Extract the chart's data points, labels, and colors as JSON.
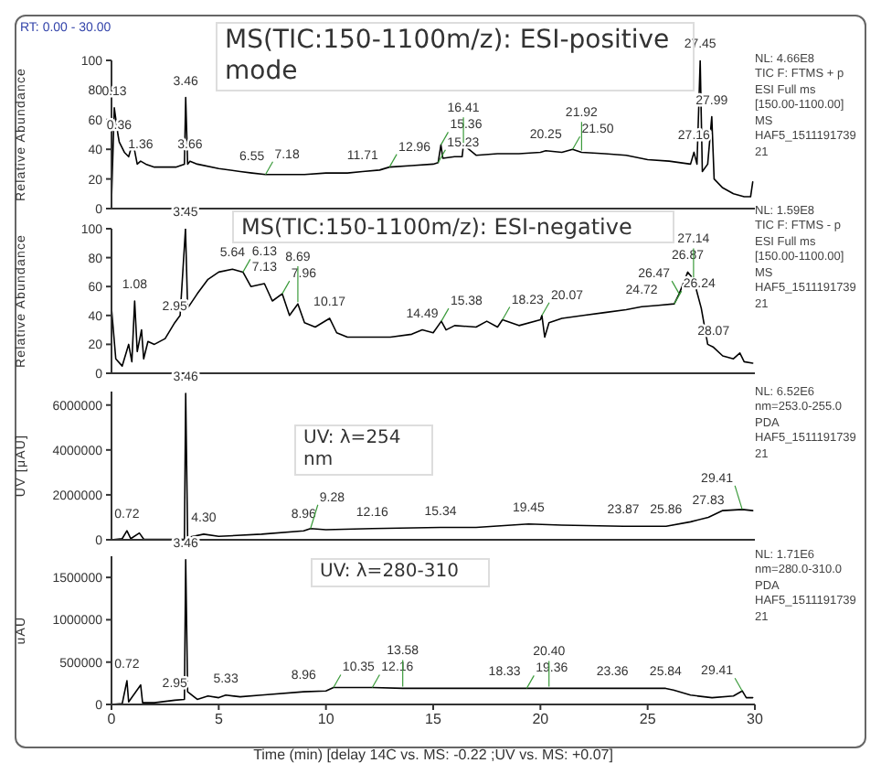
{
  "chart_data": [
    {
      "type": "line",
      "title": "MS(TIC:150-1100m/z): ESI-positive mode",
      "subtitle": "RT: 0.00 - 30.00",
      "ylabel": "Relative Abundance",
      "color": "#000000",
      "xlim": [
        0,
        30
      ],
      "xticks": [
        0,
        5,
        10,
        15,
        20,
        25,
        30
      ],
      "ylim": [
        0,
        100
      ],
      "yticks": [
        0,
        20,
        40,
        60,
        80,
        100
      ],
      "tick_labels": "y",
      "x": [
        0,
        0.13,
        0.3,
        0.36,
        0.6,
        0.8,
        1.0,
        1.2,
        1.36,
        1.6,
        2,
        2.5,
        3,
        3.4,
        3.46,
        3.55,
        3.66,
        4,
        5,
        6,
        6.55,
        7.18,
        8,
        9,
        10,
        11,
        11.71,
        12.5,
        12.96,
        14,
        15,
        15.23,
        15.36,
        15.45,
        16,
        16.35,
        16.41,
        17,
        18,
        19,
        20,
        20.25,
        21,
        21.5,
        21.92,
        23,
        24,
        25,
        26,
        27,
        27.16,
        27.3,
        27.45,
        27.55,
        27.8,
        27.99,
        28.1,
        28.5,
        29,
        29.5,
        29.8,
        29.9
      ],
      "values": [
        5,
        68,
        50,
        45,
        38,
        35,
        45,
        30,
        32,
        30,
        28,
        28,
        28,
        30,
        75,
        30,
        32,
        30,
        27,
        25,
        24,
        23,
        23,
        23,
        24,
        24,
        25,
        26,
        28,
        29,
        30,
        31,
        43,
        34,
        35,
        35,
        43,
        36,
        37,
        37,
        38,
        39,
        38,
        40,
        38,
        37,
        36,
        33,
        32,
        30,
        38,
        30,
        100,
        25,
        30,
        62,
        20,
        14,
        10,
        8,
        8,
        18
      ],
      "annotations": [
        {
          "text": "0.13",
          "x": 0.13,
          "y": 68
        },
        {
          "text": "0.36",
          "x": 0.36,
          "y": 45
        },
        {
          "text": "1.36",
          "x": 1.36,
          "y": 32
        },
        {
          "text": "3.46",
          "x": 3.46,
          "y": 75
        },
        {
          "text": "3.66",
          "x": 3.66,
          "y": 32
        },
        {
          "text": "6.55",
          "x": 6.55,
          "y": 24
        },
        {
          "text": "7.18",
          "x": 7.18,
          "y": 23
        },
        {
          "text": "11.71",
          "x": 11.71,
          "y": 25
        },
        {
          "text": "12.96",
          "x": 12.96,
          "y": 28
        },
        {
          "text": "15.23",
          "x": 15.23,
          "y": 31
        },
        {
          "text": "15.36",
          "x": 15.36,
          "y": 43
        },
        {
          "text": "16.41",
          "x": 16.41,
          "y": 43
        },
        {
          "text": "20.25",
          "x": 20.25,
          "y": 39
        },
        {
          "text": "21.50",
          "x": 21.5,
          "y": 40
        },
        {
          "text": "21.92",
          "x": 21.92,
          "y": 38
        },
        {
          "text": "27.16",
          "x": 27.16,
          "y": 38
        },
        {
          "text": "27.45",
          "x": 27.45,
          "y": 100
        },
        {
          "text": "27.99",
          "x": 27.99,
          "y": 62
        },
        "NL: 4.66E8",
        "TIC F: FTMS + p",
        "ESI Full ms",
        "[150.00-1100.00]",
        "MS",
        "HAF5_151119173921"
      ]
    },
    {
      "type": "line",
      "title": "MS(TIC:150-1100m/z): ESI-negative",
      "ylabel": "Relative Abundance",
      "color": "#000000",
      "xlim": [
        0,
        30
      ],
      "xticks": [
        0,
        5,
        10,
        15,
        20,
        25,
        30
      ],
      "ylim": [
        0,
        100
      ],
      "yticks": [
        0,
        20,
        40,
        60,
        80,
        100
      ],
      "tick_labels": "y",
      "x": [
        0,
        0.2,
        0.5,
        0.8,
        0.95,
        1.08,
        1.2,
        1.4,
        1.5,
        1.7,
        2,
        2.5,
        2.95,
        3.2,
        3.45,
        3.55,
        4,
        4.5,
        5,
        5.64,
        6.13,
        6.5,
        7.13,
        7.5,
        7.96,
        8.3,
        8.69,
        9,
        9.5,
        10.17,
        10.5,
        11,
        12,
        13,
        14,
        14.49,
        15,
        15.38,
        15.6,
        16,
        17,
        17.5,
        18,
        18.23,
        19,
        20,
        20.07,
        20.2,
        20.4,
        21,
        22,
        23,
        24,
        24.72,
        25.5,
        26.24,
        26.47,
        26.87,
        27.14,
        27.5,
        27.8,
        28.07,
        28.5,
        29,
        29.3,
        29.5,
        29.9
      ],
      "values": [
        45,
        10,
        5,
        20,
        8,
        50,
        15,
        30,
        10,
        22,
        20,
        24,
        35,
        40,
        100,
        45,
        55,
        65,
        70,
        72,
        70,
        60,
        62,
        50,
        55,
        40,
        48,
        35,
        32,
        38,
        28,
        25,
        25,
        25,
        27,
        30,
        28,
        36,
        30,
        33,
        32,
        36,
        32,
        37,
        33,
        37,
        40,
        25,
        35,
        38,
        40,
        42,
        44,
        46,
        47,
        48,
        55,
        70,
        65,
        45,
        20,
        18,
        12,
        10,
        14,
        8,
        7
      ],
      "annotations": [
        {
          "text": "1.08",
          "x": 1.08,
          "y": 50
        },
        {
          "text": "2.95",
          "x": 2.95,
          "y": 35
        },
        {
          "text": "3.45",
          "x": 3.45,
          "y": 100
        },
        {
          "text": "5.64",
          "x": 5.64,
          "y": 72
        },
        {
          "text": "6.13",
          "x": 6.13,
          "y": 70
        },
        {
          "text": "7.13",
          "x": 7.13,
          "y": 62
        },
        {
          "text": "7.96",
          "x": 7.96,
          "y": 55
        },
        {
          "text": "8.69",
          "x": 8.69,
          "y": 48
        },
        {
          "text": "10.17",
          "x": 10.17,
          "y": 38
        },
        {
          "text": "14.49",
          "x": 14.49,
          "y": 30
        },
        {
          "text": "15.38",
          "x": 15.38,
          "y": 36
        },
        {
          "text": "18.23",
          "x": 18.23,
          "y": 37
        },
        {
          "text": "20.07",
          "x": 20.07,
          "y": 40
        },
        {
          "text": "24.72",
          "x": 24.72,
          "y": 46
        },
        {
          "text": "26.24",
          "x": 26.24,
          "y": 48
        },
        {
          "text": "26.47",
          "x": 26.47,
          "y": 55
        },
        {
          "text": "26.87",
          "x": 26.87,
          "y": 70
        },
        {
          "text": "27.14",
          "x": 27.14,
          "y": 65
        },
        {
          "text": "28.07",
          "x": 28.07,
          "y": 18
        },
        "NL: 1.59E8",
        "TIC F: FTMS - p",
        "ESI Full ms",
        "[150.00-1100.00]",
        "MS",
        "HAF5_151119173921"
      ]
    },
    {
      "type": "line",
      "title": "UV: λ=254 nm",
      "ylabel": "UV [μAU]",
      "color": "#000000",
      "xlim": [
        0,
        30
      ],
      "xticks": [
        0,
        5,
        10,
        15,
        20,
        25,
        30
      ],
      "ylim": [
        0,
        6600000
      ],
      "yticks": [
        0,
        2000000,
        4000000,
        6000000
      ],
      "tick_labels": "y",
      "x": [
        0,
        0.5,
        0.72,
        0.9,
        1.3,
        1.5,
        3,
        3.4,
        3.46,
        3.55,
        4.3,
        5,
        7,
        8.96,
        9.28,
        10,
        12.16,
        15.34,
        17,
        19.45,
        21,
        23.87,
        25.86,
        27,
        27.83,
        28.5,
        29.41,
        29.9
      ],
      "values": [
        0,
        50000,
        400000,
        50000,
        300000,
        30000,
        20000,
        30000,
        6520000,
        100000,
        250000,
        150000,
        250000,
        400000,
        500000,
        450000,
        500000,
        550000,
        550000,
        700000,
        650000,
        600000,
        600000,
        800000,
        1000000,
        1300000,
        1350000,
        1300000
      ],
      "annotations": [
        {
          "text": "0.72",
          "x": 0.72,
          "y": 400000
        },
        {
          "text": "3.46",
          "x": 3.46,
          "y": 6520000
        },
        {
          "text": "4.30",
          "x": 4.3,
          "y": 250000
        },
        {
          "text": "8.96",
          "x": 8.96,
          "y": 400000
        },
        {
          "text": "9.28",
          "x": 9.28,
          "y": 500000
        },
        {
          "text": "12.16",
          "x": 12.16,
          "y": 500000
        },
        {
          "text": "15.34",
          "x": 15.34,
          "y": 550000
        },
        {
          "text": "19.45",
          "x": 19.45,
          "y": 700000
        },
        {
          "text": "23.87",
          "x": 23.87,
          "y": 600000
        },
        {
          "text": "25.86",
          "x": 25.86,
          "y": 600000
        },
        {
          "text": "27.83",
          "x": 27.83,
          "y": 1000000
        },
        {
          "text": "29.41",
          "x": 29.41,
          "y": 1350000
        },
        "NL: 6.52E6",
        "nm=253.0-255.0",
        "PDA",
        "HAF5_151119173921"
      ]
    },
    {
      "type": "line",
      "title": "UV: λ=280-310",
      "xlabel": "Time (min)  [delay 14C vs. MS: -0.22 ;UV vs. MS: +0.07]",
      "ylabel": "uAU",
      "color": "#000000",
      "xlim": [
        0,
        30
      ],
      "xticks": [
        0,
        5,
        10,
        15,
        20,
        25,
        30
      ],
      "ylim": [
        0,
        1750000
      ],
      "yticks": [
        0,
        500000,
        1000000,
        1500000
      ],
      "x": [
        0,
        0.5,
        0.72,
        0.8,
        1.36,
        1.45,
        2,
        2.95,
        3.4,
        3.46,
        3.55,
        4,
        4.5,
        5,
        5.33,
        6,
        7,
        8.96,
        10,
        10.35,
        12.16,
        13.58,
        15,
        18.33,
        19.36,
        20.4,
        23.36,
        25.84,
        26.2,
        27,
        28,
        29,
        29.41,
        29.6,
        29.9
      ],
      "values": [
        0,
        10000,
        280000,
        30000,
        230000,
        20000,
        20000,
        50000,
        60000,
        1710000,
        150000,
        60000,
        100000,
        80000,
        110000,
        90000,
        110000,
        150000,
        160000,
        200000,
        200000,
        190000,
        190000,
        190000,
        190000,
        190000,
        190000,
        190000,
        170000,
        110000,
        80000,
        100000,
        160000,
        80000,
        80000
      ],
      "annotations": [
        {
          "text": "0.72",
          "x": 0.72,
          "y": 280000
        },
        {
          "text": "2.95",
          "x": 2.95,
          "y": 50000
        },
        {
          "text": "3.46",
          "x": 3.46,
          "y": 1710000
        },
        {
          "text": "5.33",
          "x": 5.33,
          "y": 110000
        },
        {
          "text": "8.96",
          "x": 8.96,
          "y": 150000
        },
        {
          "text": "10.35",
          "x": 10.35,
          "y": 200000
        },
        {
          "text": "12.16",
          "x": 12.16,
          "y": 200000
        },
        {
          "text": "13.58",
          "x": 13.58,
          "y": 190000
        },
        {
          "text": "18.33",
          "x": 18.33,
          "y": 190000
        },
        {
          "text": "19.36",
          "x": 19.36,
          "y": 190000
        },
        {
          "text": "20.40",
          "x": 20.4,
          "y": 190000
        },
        {
          "text": "23.36",
          "x": 23.36,
          "y": 190000
        },
        {
          "text": "25.84",
          "x": 25.84,
          "y": 190000
        },
        {
          "text": "29.41",
          "x": 29.41,
          "y": 160000
        },
        "NL: 1.71E6",
        "nm=280.0-310.0",
        "PDA",
        "HAF5_151119173921"
      ]
    }
  ]
}
